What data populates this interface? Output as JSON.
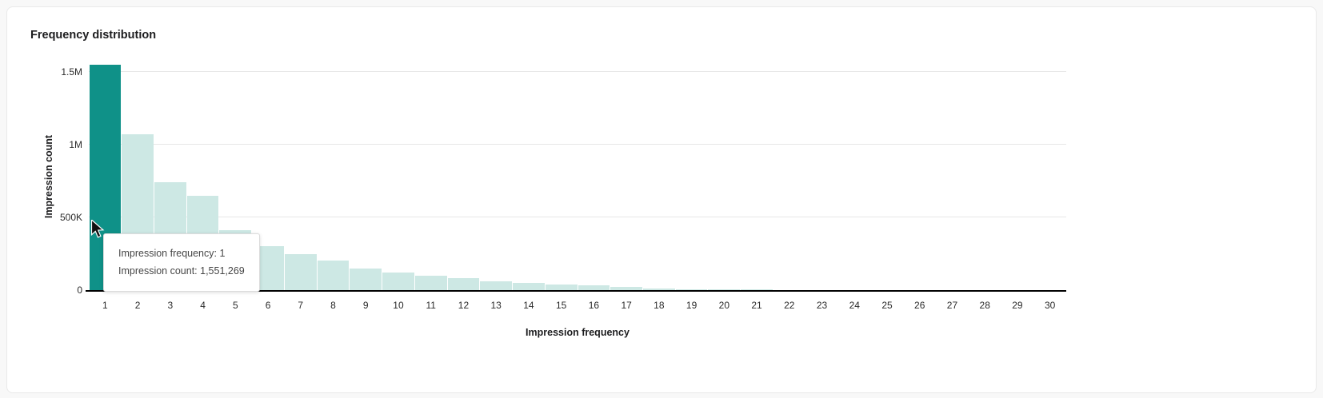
{
  "card": {
    "title": "Frequency distribution"
  },
  "chart_data": {
    "type": "bar",
    "title": "Frequency distribution",
    "xlabel": "Impression frequency",
    "ylabel": "Impression count",
    "categories": [
      "1",
      "2",
      "3",
      "4",
      "5",
      "6",
      "7",
      "8",
      "9",
      "10",
      "11",
      "12",
      "13",
      "14",
      "15",
      "16",
      "17",
      "18",
      "19",
      "20",
      "21",
      "22",
      "23",
      "24",
      "25",
      "26",
      "27",
      "28",
      "29",
      "30"
    ],
    "values": [
      1551269,
      1075000,
      742000,
      650000,
      410000,
      305000,
      245000,
      205000,
      150000,
      122000,
      98000,
      85000,
      62000,
      50000,
      40000,
      33000,
      22000,
      13000,
      8000,
      5000,
      3500,
      2500,
      2000,
      1500,
      1200,
      1000,
      800,
      700,
      600,
      500
    ],
    "ylim": [
      0,
      1551269
    ],
    "yticks": [
      {
        "value": 0,
        "label": "0"
      },
      {
        "value": 500000,
        "label": "500K"
      },
      {
        "value": 1000000,
        "label": "1M"
      },
      {
        "value": 1500000,
        "label": "1.5M"
      }
    ],
    "highlighted_index": 0,
    "grid": "horizontal",
    "legend": "none",
    "colors": {
      "bar": "#cde8e4",
      "bar_highlight": "#0f9188",
      "gridline": "#e7e7e7",
      "axis": "#000000"
    }
  },
  "tooltip": {
    "line1": "Impression frequency: 1",
    "line2": "Impression count: 1,551,269"
  }
}
